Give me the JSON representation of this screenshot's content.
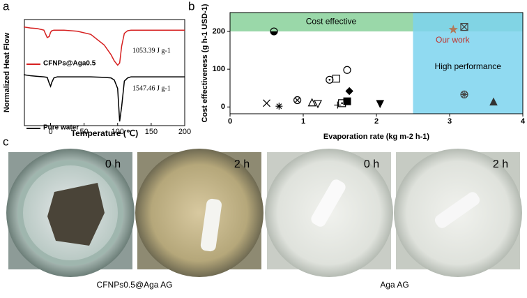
{
  "panel_labels": [
    "a",
    "b",
    "c"
  ],
  "chart_data": [
    {
      "type": "line",
      "xlabel": "Temperature (℃)",
      "ylabel": "Normalized Heat Flow",
      "x": [
        -40,
        -30,
        -20,
        -10,
        -5,
        -2,
        0,
        2,
        5,
        10,
        20,
        40,
        60,
        80,
        90,
        95,
        100,
        103,
        106,
        110,
        115,
        120,
        140,
        160,
        180,
        200
      ],
      "xlim": [
        -39,
        200
      ],
      "xticks": [
        0,
        50,
        100,
        150,
        200
      ],
      "ylim": [
        0,
        10
      ],
      "series": [
        {
          "name": "CFNPs@Aga0.5",
          "color": "#d62020",
          "values": [
            9.3,
            9.2,
            9.15,
            9.0,
            8.3,
            8.4,
            8.8,
            8.95,
            9.0,
            9.0,
            9.0,
            8.9,
            8.6,
            7.6,
            6.7,
            6.1,
            5.7,
            5.9,
            7.5,
            8.7,
            8.95,
            9.0,
            9.0,
            9.0,
            9.0,
            9.0
          ]
        },
        {
          "name": "Pure water",
          "color": "#000000",
          "values": [
            4.8,
            4.7,
            4.65,
            4.6,
            4.55,
            4.0,
            3.7,
            4.1,
            4.5,
            4.6,
            4.6,
            4.6,
            4.6,
            4.55,
            4.5,
            4.3,
            3.5,
            0.4,
            1.8,
            4.2,
            4.5,
            4.6,
            4.6,
            4.6,
            4.6,
            4.6
          ]
        }
      ],
      "annotations": [
        "1053.39 J g-1",
        "1547.46 J g-1"
      ]
    },
    {
      "type": "scatter",
      "xlabel": "Evaporation rate (kg m-2 h-1)",
      "ylabel": "Cost effectiveness (g h-1 USD-1)",
      "xlim": [
        0,
        4
      ],
      "xticks": [
        0,
        1,
        2,
        3,
        4
      ],
      "ylim": [
        -18,
        250
      ],
      "yticks": [
        0,
        100,
        200
      ],
      "x": [
        0.6,
        0.5,
        0.67,
        0.92,
        1.12,
        1.2,
        1.36,
        1.45,
        1.47,
        1.53,
        1.6,
        1.63,
        1.6,
        2.05,
        3.05,
        3.2,
        3.2,
        3.6
      ],
      "values": [
        200,
        10,
        2,
        18,
        12,
        8,
        72,
        75,
        5,
        10,
        98,
        42,
        15,
        8,
        205,
        212,
        33,
        14
      ],
      "markers": [
        "half-circle",
        "x",
        "asterisk",
        "circle-x",
        "triangle-up",
        "triangle-down",
        "circle-dot",
        "square",
        "plus",
        "square-dot",
        "circle",
        "diamond-filled",
        "square-filled",
        "triangle-down-filled",
        "star",
        "square-x",
        "circle-star",
        "triangle-filled"
      ],
      "marker_colors": [
        "#000",
        "#000",
        "#000",
        "#000",
        "#000",
        "#000",
        "#000",
        "#000",
        "#000",
        "#000",
        "#000",
        "#000",
        "#000",
        "#000",
        "#b07a5a",
        "#444",
        "#444",
        "#333"
      ],
      "regions": [
        {
          "label": "Cost effective",
          "x": [
            0,
            4
          ],
          "y": [
            200,
            250
          ],
          "color": "#8fd4a0"
        },
        {
          "label": "High performance",
          "x": [
            2.5,
            4
          ],
          "y": [
            -18,
            250
          ],
          "color": "#7dd3ef"
        }
      ],
      "annotation": "Our work",
      "annotation_color": "#c0302a"
    }
  ],
  "panel_c": {
    "photos": [
      "0 h",
      "2 h",
      "0 h",
      "2 h"
    ],
    "captions": [
      "CFNPs0.5@Aga AG",
      "Aga AG"
    ]
  }
}
